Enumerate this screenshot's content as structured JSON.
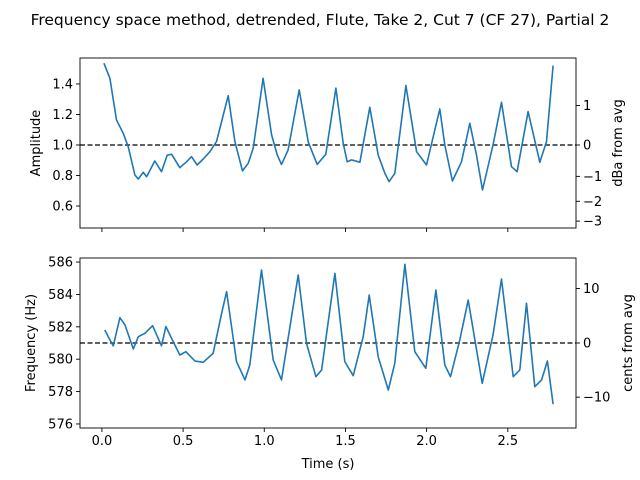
{
  "title": "Frequency space method, detrended, Flute, Take 2, Cut 7 (CF 27), Partial 2",
  "chart_data": [
    {
      "type": "line",
      "ylabel": "Amplitude",
      "ylabel_right": "dBa from avg",
      "xlabel": "",
      "xlim": [
        -0.135,
        2.92
      ],
      "ylim": [
        0.456,
        1.57
      ],
      "yticks": [
        0.6,
        0.8,
        1.0,
        1.2,
        1.4
      ],
      "yticks_right": [
        1,
        0,
        -1,
        -2,
        -3
      ],
      "xticks": [
        0.0,
        0.5,
        1.0,
        1.5,
        2.0,
        2.5
      ],
      "reference_line": 1.0,
      "color": "#1f77b4",
      "x": [
        0.012,
        0.049,
        0.09,
        0.131,
        0.162,
        0.203,
        0.224,
        0.254,
        0.275,
        0.326,
        0.367,
        0.402,
        0.429,
        0.48,
        0.521,
        0.552,
        0.587,
        0.624,
        0.665,
        0.706,
        0.778,
        0.819,
        0.866,
        0.901,
        0.932,
        0.993,
        1.045,
        1.08,
        1.106,
        1.147,
        1.215,
        1.271,
        1.326,
        1.379,
        1.441,
        1.486,
        1.511,
        1.537,
        1.589,
        1.65,
        1.702,
        1.743,
        1.769,
        1.804,
        1.872,
        1.938,
        1.999,
        2.081,
        2.112,
        2.159,
        2.215,
        2.266,
        2.307,
        2.344,
        2.409,
        2.461,
        2.523,
        2.557,
        2.625,
        2.697,
        2.738,
        2.779
      ],
      "y": [
        1.536,
        1.437,
        1.164,
        1.077,
        0.989,
        0.803,
        0.777,
        0.821,
        0.792,
        0.895,
        0.825,
        0.934,
        0.939,
        0.851,
        0.89,
        0.923,
        0.869,
        0.908,
        0.956,
        1.022,
        1.323,
        1.022,
        0.83,
        0.88,
        0.978,
        1.437,
        1.066,
        0.934,
        0.873,
        0.967,
        1.361,
        1.018,
        0.873,
        0.939,
        1.372,
        1.011,
        0.89,
        0.902,
        0.887,
        1.247,
        0.934,
        0.814,
        0.76,
        0.814,
        1.389,
        0.956,
        0.869,
        1.236,
        1.0,
        0.764,
        0.89,
        1.142,
        0.934,
        0.705,
        1.0,
        1.28,
        0.858,
        0.825,
        1.219,
        0.887,
        1.022,
        1.52
      ]
    },
    {
      "type": "line",
      "ylabel": "Frequency (Hz)",
      "ylabel_right": "cents from avg",
      "xlabel": "Time (s)",
      "xlim": [
        -0.135,
        2.92
      ],
      "ylim": [
        575.75,
        586.25
      ],
      "yticks": [
        576,
        578,
        580,
        582,
        584,
        586
      ],
      "yticks_right": [
        10,
        0,
        -10
      ],
      "xticks": [
        0.0,
        0.5,
        1.0,
        1.5,
        2.0,
        2.5
      ],
      "reference_line": 581,
      "color": "#1f77b4",
      "x": [
        0.018,
        0.049,
        0.07,
        0.111,
        0.142,
        0.193,
        0.224,
        0.265,
        0.312,
        0.367,
        0.394,
        0.429,
        0.48,
        0.517,
        0.573,
        0.624,
        0.685,
        0.737,
        0.768,
        0.829,
        0.881,
        0.911,
        0.983,
        1.055,
        1.106,
        1.209,
        1.26,
        1.318,
        1.353,
        1.435,
        1.496,
        1.548,
        1.609,
        1.646,
        1.702,
        1.764,
        1.804,
        1.866,
        1.927,
        1.995,
        2.057,
        2.112,
        2.147,
        2.204,
        2.256,
        2.342,
        2.409,
        2.461,
        2.533,
        2.574,
        2.615,
        2.666,
        2.708,
        2.744,
        2.779
      ],
      "y": [
        581.8,
        581.19,
        580.83,
        582.56,
        582.11,
        580.63,
        581.39,
        581.6,
        582.07,
        580.83,
        582.01,
        581.29,
        580.26,
        580.46,
        579.89,
        579.81,
        580.36,
        582.83,
        584.17,
        579.85,
        578.72,
        579.64,
        585.51,
        579.95,
        578.72,
        585.2,
        580.98,
        578.92,
        579.33,
        585.3,
        579.85,
        578.98,
        581.39,
        583.96,
        580.15,
        578.1,
        579.75,
        585.86,
        580.46,
        579.44,
        584.27,
        579.64,
        578.92,
        581.19,
        583.65,
        578.51,
        581.49,
        584.95,
        578.92,
        579.33,
        583.45,
        578.3,
        578.72,
        579.89,
        577.22
      ]
    }
  ]
}
